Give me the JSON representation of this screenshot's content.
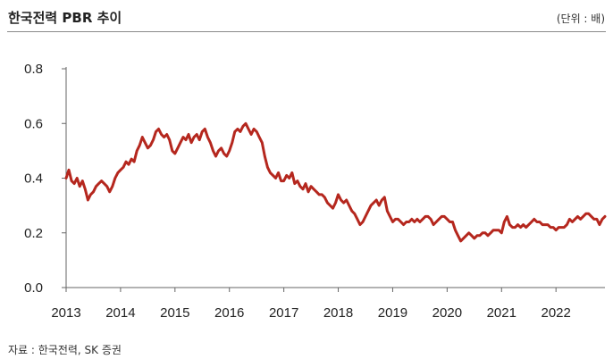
{
  "header": {
    "title": "한국전력 PBR 추이",
    "unit": "(단위 : 배)"
  },
  "footer": {
    "source": "자료 : 한국전력, SK 증권"
  },
  "chart_data": {
    "type": "line",
    "title": "한국전력 PBR 추이",
    "xlabel": "",
    "ylabel": "",
    "ylim": [
      0.0,
      0.8
    ],
    "xlim": [
      2013.0,
      2022.9
    ],
    "y_ticks": [
      0.0,
      0.2,
      0.4,
      0.6,
      0.8
    ],
    "y_tick_labels": [
      "0.0",
      "0.2",
      "0.4",
      "0.6",
      "0.8"
    ],
    "x_ticks": [
      2013,
      2014,
      2015,
      2016,
      2017,
      2018,
      2019,
      2020,
      2021,
      2022
    ],
    "x_tick_labels": [
      "2013",
      "2014",
      "2015",
      "2016",
      "2017",
      "2018",
      "2019",
      "2020",
      "2021",
      "2022"
    ],
    "grid": false,
    "legend": "none",
    "line_color": "#b5271e",
    "series": [
      {
        "x": [
          2013.0,
          2013.05,
          2013.1,
          2013.15,
          2013.2,
          2013.25,
          2013.3,
          2013.35,
          2013.4,
          2013.45,
          2013.5,
          2013.55,
          2013.6,
          2013.65,
          2013.7,
          2013.75,
          2013.8,
          2013.85,
          2013.9,
          2013.95,
          2014.0,
          2014.05,
          2014.1,
          2014.15,
          2014.2,
          2014.25,
          2014.3,
          2014.35,
          2014.4,
          2014.45,
          2014.5,
          2014.55,
          2014.6,
          2014.65,
          2014.7,
          2014.75,
          2014.8,
          2014.85,
          2014.9,
          2014.95,
          2015.0,
          2015.05,
          2015.1,
          2015.15,
          2015.2,
          2015.25,
          2015.3,
          2015.35,
          2015.4,
          2015.45,
          2015.5,
          2015.55,
          2015.6,
          2015.65,
          2015.7,
          2015.75,
          2015.8,
          2015.85,
          2015.9,
          2015.95,
          2016.0,
          2016.05,
          2016.1,
          2016.15,
          2016.2,
          2016.25,
          2016.3,
          2016.35,
          2016.4,
          2016.45,
          2016.5,
          2016.55,
          2016.6,
          2016.65,
          2016.7,
          2016.75,
          2016.8,
          2016.85,
          2016.9,
          2016.95,
          2017.0,
          2017.05,
          2017.1,
          2017.15,
          2017.2,
          2017.25,
          2017.3,
          2017.35,
          2017.4,
          2017.45,
          2017.5,
          2017.55,
          2017.6,
          2017.65,
          2017.7,
          2017.75,
          2017.8,
          2017.85,
          2017.9,
          2017.95,
          2018.0,
          2018.05,
          2018.1,
          2018.15,
          2018.2,
          2018.25,
          2018.3,
          2018.35,
          2018.4,
          2018.45,
          2018.5,
          2018.55,
          2018.6,
          2018.65,
          2018.7,
          2018.75,
          2018.8,
          2018.85,
          2018.9,
          2018.95,
          2019.0,
          2019.05,
          2019.1,
          2019.15,
          2019.2,
          2019.25,
          2019.3,
          2019.35,
          2019.4,
          2019.45,
          2019.5,
          2019.55,
          2019.6,
          2019.65,
          2019.7,
          2019.75,
          2019.8,
          2019.85,
          2019.9,
          2019.95,
          2020.0,
          2020.05,
          2020.1,
          2020.15,
          2020.2,
          2020.25,
          2020.3,
          2020.35,
          2020.4,
          2020.45,
          2020.5,
          2020.55,
          2020.6,
          2020.65,
          2020.7,
          2020.75,
          2020.8,
          2020.85,
          2020.9,
          2020.95,
          2021.0,
          2021.05,
          2021.1,
          2021.15,
          2021.2,
          2021.25,
          2021.3,
          2021.35,
          2021.4,
          2021.45,
          2021.5,
          2021.55,
          2021.6,
          2021.65,
          2021.7,
          2021.75,
          2021.8,
          2021.85,
          2021.9,
          2021.95,
          2022.0,
          2022.05,
          2022.1,
          2022.15,
          2022.2,
          2022.25,
          2022.3,
          2022.35,
          2022.4,
          2022.45,
          2022.5,
          2022.55,
          2022.6,
          2022.65,
          2022.7,
          2022.75,
          2022.8,
          2022.85,
          2022.9
        ],
        "y": [
          0.4,
          0.43,
          0.39,
          0.38,
          0.4,
          0.37,
          0.39,
          0.36,
          0.32,
          0.34,
          0.35,
          0.37,
          0.38,
          0.39,
          0.38,
          0.37,
          0.35,
          0.37,
          0.4,
          0.42,
          0.43,
          0.44,
          0.46,
          0.45,
          0.47,
          0.46,
          0.5,
          0.52,
          0.55,
          0.53,
          0.51,
          0.52,
          0.54,
          0.57,
          0.58,
          0.56,
          0.55,
          0.56,
          0.54,
          0.5,
          0.49,
          0.51,
          0.53,
          0.55,
          0.54,
          0.56,
          0.53,
          0.55,
          0.56,
          0.54,
          0.57,
          0.58,
          0.55,
          0.53,
          0.5,
          0.48,
          0.5,
          0.51,
          0.49,
          0.48,
          0.5,
          0.53,
          0.57,
          0.58,
          0.57,
          0.59,
          0.6,
          0.58,
          0.56,
          0.58,
          0.57,
          0.55,
          0.53,
          0.48,
          0.44,
          0.42,
          0.41,
          0.4,
          0.42,
          0.39,
          0.39,
          0.41,
          0.4,
          0.42,
          0.38,
          0.39,
          0.37,
          0.36,
          0.38,
          0.35,
          0.37,
          0.36,
          0.35,
          0.34,
          0.34,
          0.33,
          0.31,
          0.3,
          0.29,
          0.31,
          0.34,
          0.32,
          0.31,
          0.32,
          0.3,
          0.28,
          0.27,
          0.25,
          0.23,
          0.24,
          0.26,
          0.28,
          0.3,
          0.31,
          0.32,
          0.3,
          0.32,
          0.33,
          0.28,
          0.26,
          0.24,
          0.25,
          0.25,
          0.24,
          0.23,
          0.24,
          0.24,
          0.25,
          0.24,
          0.25,
          0.24,
          0.25,
          0.26,
          0.26,
          0.25,
          0.23,
          0.24,
          0.25,
          0.26,
          0.26,
          0.25,
          0.24,
          0.24,
          0.21,
          0.19,
          0.17,
          0.18,
          0.19,
          0.2,
          0.19,
          0.18,
          0.19,
          0.19,
          0.2,
          0.2,
          0.19,
          0.2,
          0.21,
          0.21,
          0.21,
          0.2,
          0.24,
          0.26,
          0.23,
          0.22,
          0.22,
          0.23,
          0.22,
          0.23,
          0.22,
          0.23,
          0.24,
          0.25,
          0.24,
          0.24,
          0.23,
          0.23,
          0.23,
          0.22,
          0.22,
          0.21,
          0.22,
          0.22,
          0.22,
          0.23,
          0.25,
          0.24,
          0.25,
          0.26,
          0.25,
          0.26,
          0.27,
          0.27,
          0.26,
          0.25,
          0.25,
          0.23,
          0.25,
          0.26
        ]
      }
    ]
  }
}
